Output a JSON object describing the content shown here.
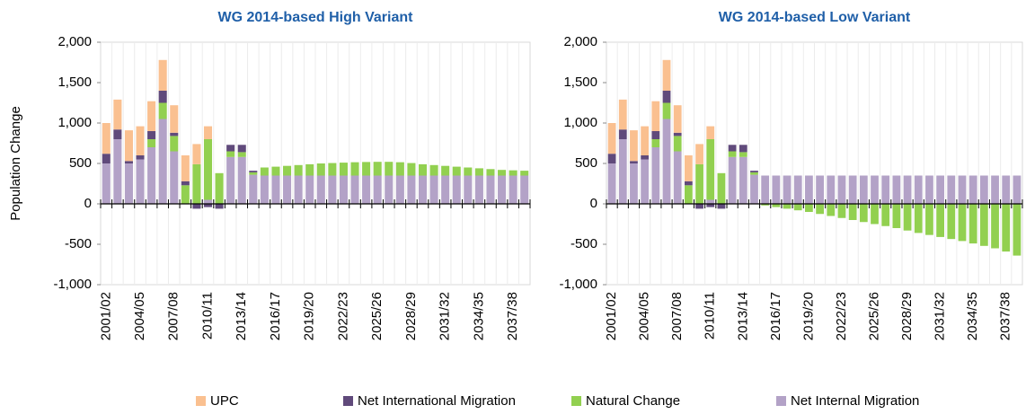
{
  "chart_data": [
    {
      "type": "stacked-bar",
      "title": "WG 2014-based High Variant",
      "y_label": "Population Change",
      "categories": [
        "2001/02",
        null,
        null,
        "2004/05",
        null,
        null,
        "2007/08",
        null,
        null,
        "2010/11",
        null,
        null,
        "2013/14",
        null,
        null,
        "2016/17",
        null,
        null,
        "2019/20",
        null,
        null,
        "2022/23",
        null,
        null,
        "2025/26",
        null,
        null,
        "2028/29",
        null,
        null,
        "2031/32",
        null,
        null,
        "2034/35",
        null,
        null,
        "2037/38",
        null
      ],
      "series": [
        {
          "name": "UPC",
          "color": "#fac090",
          "values": [
            380,
            370,
            380,
            360,
            370,
            380,
            340,
            320,
            250,
            160,
            0,
            0,
            0,
            0,
            0,
            0,
            0,
            0,
            0,
            0,
            0,
            0,
            0,
            0,
            0,
            0,
            0,
            0,
            0,
            0,
            0,
            0,
            0,
            0,
            0,
            0,
            0,
            0
          ]
        },
        {
          "name": "Net International Migration",
          "color": "#604a7b",
          "values": [
            120,
            120,
            30,
            50,
            100,
            150,
            40,
            50,
            -60,
            -40,
            -60,
            80,
            90,
            20,
            0,
            0,
            0,
            0,
            0,
            0,
            0,
            0,
            0,
            0,
            0,
            0,
            0,
            0,
            0,
            0,
            0,
            0,
            0,
            0,
            0,
            0,
            0,
            0
          ]
        },
        {
          "name": "Natural Change",
          "color": "#92d050",
          "values": [
            0,
            0,
            0,
            0,
            100,
            200,
            190,
            230,
            490,
            750,
            380,
            70,
            60,
            30,
            100,
            110,
            120,
            130,
            140,
            150,
            155,
            160,
            165,
            168,
            170,
            170,
            165,
            155,
            140,
            130,
            120,
            110,
            100,
            90,
            80,
            70,
            65,
            60
          ]
        },
        {
          "name": "Net Internal Migration",
          "color": "#b3a2c7",
          "values": [
            500,
            800,
            500,
            550,
            700,
            1050,
            650,
            0,
            0,
            50,
            0,
            580,
            580,
            360,
            350,
            350,
            350,
            350,
            350,
            350,
            350,
            350,
            350,
            350,
            350,
            350,
            350,
            350,
            350,
            350,
            350,
            350,
            350,
            350,
            350,
            350,
            350,
            350
          ]
        }
      ],
      "ylim": [
        -1000,
        2000
      ],
      "yticks": [
        {
          "value": -1000,
          "label": "-1,000"
        },
        -500,
        0,
        500,
        {
          "value": 1000,
          "label": "1,000"
        },
        {
          "value": 1500,
          "label": "1,500"
        },
        {
          "value": 2000,
          "label": "2,000"
        }
      ]
    },
    {
      "type": "stacked-bar",
      "title": "WG 2014-based Low Variant",
      "categories": [
        "2001/02",
        null,
        null,
        "2004/05",
        null,
        null,
        "2007/08",
        null,
        null,
        "2010/11",
        null,
        null,
        "2013/14",
        null,
        null,
        "2016/17",
        null,
        null,
        "2019/20",
        null,
        null,
        "2022/23",
        null,
        null,
        "2025/26",
        null,
        null,
        "2028/29",
        null,
        null,
        "2031/32",
        null,
        null,
        "2034/35",
        null,
        null,
        "2037/38",
        null
      ],
      "series": [
        {
          "name": "UPC",
          "color": "#fac090",
          "values": [
            380,
            370,
            380,
            360,
            370,
            380,
            340,
            320,
            250,
            160,
            0,
            0,
            0,
            0,
            0,
            0,
            0,
            0,
            0,
            0,
            0,
            0,
            0,
            0,
            0,
            0,
            0,
            0,
            0,
            0,
            0,
            0,
            0,
            0,
            0,
            0,
            0,
            0
          ]
        },
        {
          "name": "Net International Migration",
          "color": "#604a7b",
          "values": [
            120,
            120,
            30,
            50,
            100,
            150,
            40,
            50,
            -60,
            -40,
            -60,
            80,
            90,
            20,
            0,
            0,
            0,
            0,
            0,
            0,
            0,
            0,
            0,
            0,
            0,
            0,
            0,
            0,
            0,
            0,
            0,
            0,
            0,
            0,
            0,
            0,
            0,
            0
          ]
        },
        {
          "name": "Natural Change",
          "color": "#92d050",
          "values": [
            0,
            0,
            0,
            0,
            100,
            200,
            190,
            230,
            490,
            750,
            380,
            70,
            60,
            30,
            -20,
            -40,
            -60,
            -80,
            -100,
            -125,
            -150,
            -175,
            -200,
            -225,
            -250,
            -275,
            -300,
            -330,
            -360,
            -385,
            -410,
            -435,
            -460,
            -490,
            -520,
            -550,
            -590,
            -640
          ]
        },
        {
          "name": "Net Internal Migration",
          "color": "#b3a2c7",
          "values": [
            500,
            800,
            500,
            550,
            700,
            1050,
            650,
            0,
            0,
            50,
            0,
            580,
            580,
            360,
            350,
            350,
            350,
            350,
            350,
            350,
            350,
            350,
            350,
            350,
            350,
            350,
            350,
            350,
            350,
            350,
            350,
            350,
            350,
            350,
            350,
            350,
            350,
            350
          ]
        }
      ],
      "ylim": [
        -1000,
        2000
      ],
      "yticks": [
        {
          "value": -1000,
          "label": "-1,000"
        },
        -500,
        0,
        500,
        {
          "value": 1000,
          "label": "1,000"
        },
        {
          "value": 1500,
          "label": "1,500"
        },
        {
          "value": 2000,
          "label": "2,000"
        }
      ]
    }
  ]
}
